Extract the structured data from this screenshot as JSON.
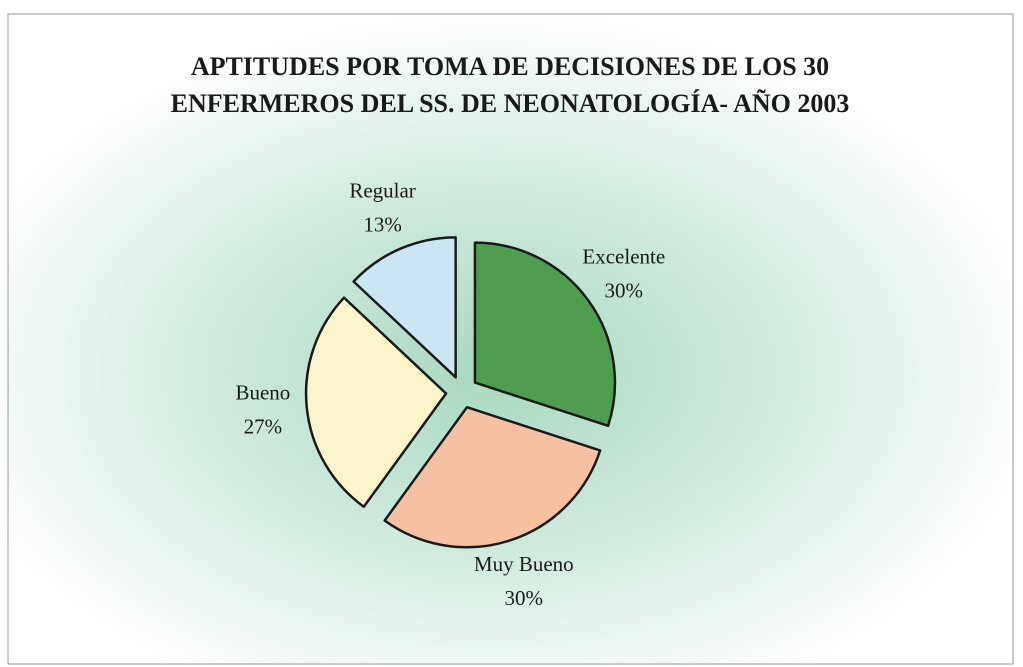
{
  "chart_data": {
    "type": "pie",
    "title": "APTITUDES POR TOMA DE DECISIONES DE LOS 30 ENFERMEROS DEL SS. DE NEONATOLOGÍA- AÑO 2003",
    "categories": [
      "Excelente",
      "Muy Bueno",
      "Bueno",
      "Regular"
    ],
    "values": [
      30,
      30,
      27,
      13
    ],
    "value_labels": [
      "30%",
      "30%",
      "27%",
      "13%"
    ],
    "colors": [
      "#4f9e50",
      "#f6c1a2",
      "#fbf5cc",
      "#cbe5f3"
    ]
  }
}
